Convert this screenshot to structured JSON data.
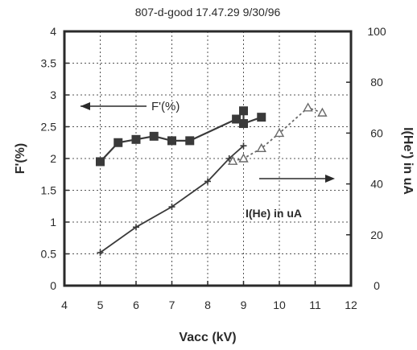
{
  "chart_data": {
    "type": "line",
    "title": "807-d-good   17.47.29 9/30/96",
    "xlabel": "Vacc (kV)",
    "ylabel": "F'(%)",
    "y2label": "I(He') in uA",
    "xlim": [
      4,
      12
    ],
    "ylim": [
      0,
      4
    ],
    "y2lim": [
      0,
      100
    ],
    "xticks": [
      "4",
      "5",
      "6",
      "7",
      "8",
      "9",
      "10",
      "11",
      "12"
    ],
    "yticks": [
      "0",
      "0.5",
      "1",
      "1.5",
      "2",
      "2.5",
      "3",
      "3.5",
      "4"
    ],
    "y2ticks": [
      "0",
      "20",
      "40",
      "60",
      "80",
      "100"
    ],
    "grid": true,
    "series": [
      {
        "name": "F'(%)",
        "axis": "left",
        "marker": "square",
        "color": "#3a3a3a",
        "x": [
          5.0,
          5.5,
          6.0,
          6.5,
          7.0,
          7.5,
          8.8,
          9.0,
          9.0,
          9.5
        ],
        "y": [
          1.95,
          2.25,
          2.3,
          2.35,
          2.28,
          2.28,
          2.62,
          2.75,
          2.55,
          2.65
        ]
      },
      {
        "name": "I(He) in uA",
        "axis": "right",
        "marker": "cross",
        "color": "#3a3a3a",
        "x": [
          5.0,
          6.0,
          7.0,
          8.0,
          8.6,
          9.0
        ],
        "y": [
          13,
          23,
          31,
          41,
          50,
          55
        ]
      },
      {
        "name": "I(He) in uA (dashed)",
        "axis": "right",
        "marker": "triangle",
        "color": "#6a6a6a",
        "dashed": true,
        "x": [
          8.7,
          9.0,
          9.5,
          10.0,
          10.8,
          11.2
        ],
        "y": [
          49,
          50,
          54,
          60,
          70,
          68
        ]
      }
    ],
    "annotations": {
      "left_arrow_label": "F'(%)",
      "right_arrow_label": "I(He) in uA"
    }
  }
}
